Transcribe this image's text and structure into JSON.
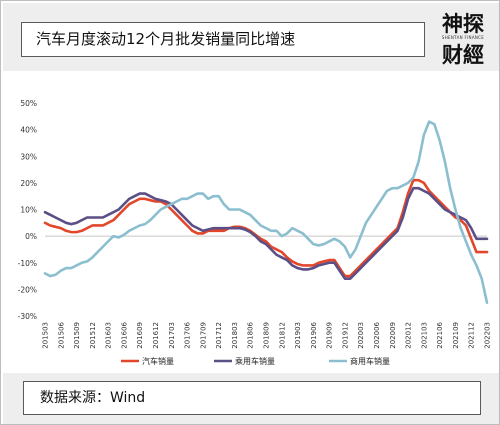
{
  "header": {
    "title": "汽车月度滚动12个月批发销量同比增速",
    "logo_top": "神探",
    "logo_bottom": "财經",
    "logo_sub": "SHENTAN FINANCE"
  },
  "footer": {
    "source": "数据来源：Wind"
  },
  "colors": {
    "auto": "#e2462b",
    "passenger": "#5b4f86",
    "commercial": "#8bbfd0"
  },
  "chart_data": {
    "type": "line",
    "title": "",
    "xlabel": "",
    "ylabel": "",
    "ylim": [
      -30,
      50
    ],
    "yticks": [
      50,
      40,
      30,
      20,
      10,
      0,
      -10,
      -20,
      -30
    ],
    "ytick_labels": [
      "50%",
      "40%",
      "30%",
      "20%",
      "10%",
      "0%",
      "-10%",
      "-20%",
      "-30%"
    ],
    "grid": false,
    "legend": "bottom",
    "x": [
      "201503",
      "201504",
      "201505",
      "201506",
      "201507",
      "201508",
      "201509",
      "201510",
      "201511",
      "201512",
      "201601",
      "201602",
      "201603",
      "201604",
      "201605",
      "201606",
      "201607",
      "201608",
      "201609",
      "201610",
      "201611",
      "201612",
      "201701",
      "201702",
      "201703",
      "201704",
      "201705",
      "201706",
      "201707",
      "201708",
      "201709",
      "201710",
      "201711",
      "201712",
      "201801",
      "201802",
      "201803",
      "201804",
      "201805",
      "201806",
      "201807",
      "201808",
      "201809",
      "201810",
      "201811",
      "201812",
      "201901",
      "201902",
      "201903",
      "201904",
      "201905",
      "201906",
      "201907",
      "201908",
      "201909",
      "201910",
      "201911",
      "201912",
      "202001",
      "202002",
      "202003",
      "202004",
      "202005",
      "202006",
      "202007",
      "202008",
      "202009",
      "202010",
      "202011",
      "202012",
      "202101",
      "202102",
      "202103",
      "202104",
      "202105",
      "202106",
      "202107",
      "202108",
      "202109",
      "202110",
      "202111",
      "202112",
      "202201",
      "202202",
      "202203"
    ],
    "xtick_labels": [
      "201503",
      "201506",
      "201509",
      "201512",
      "201603",
      "201606",
      "201609",
      "201612",
      "201703",
      "201706",
      "201709",
      "201712",
      "201803",
      "201806",
      "201809",
      "201812",
      "201903",
      "201906",
      "201909",
      "201912",
      "202003",
      "202006",
      "202009",
      "202012",
      "202103",
      "202106",
      "202109",
      "202112",
      "202203"
    ],
    "series": [
      {
        "name": "汽车销量",
        "color": "#e2462b",
        "values": [
          5,
          4,
          3.5,
          3,
          2,
          1.5,
          1.5,
          2,
          3,
          4,
          4,
          4,
          5,
          6,
          8,
          10,
          12,
          13,
          14,
          14,
          13.5,
          13,
          13,
          12,
          10,
          8,
          6,
          4,
          2,
          1,
          1,
          2,
          2,
          2,
          2,
          3,
          3.5,
          3.5,
          3,
          2,
          0.5,
          -1,
          -2,
          -4,
          -5,
          -6,
          -8,
          -9.5,
          -10.5,
          -11,
          -11,
          -11,
          -10,
          -9.5,
          -9,
          -9,
          -12,
          -15,
          -15,
          -13,
          -11,
          -9,
          -7,
          -5,
          -3,
          -1,
          1,
          3,
          9,
          16,
          21,
          21,
          20,
          17,
          15,
          13,
          11,
          9,
          7,
          6,
          4,
          -1,
          -6,
          -6,
          -6
        ]
      },
      {
        "name": "乘用车销量",
        "color": "#5b4f86",
        "values": [
          9,
          8,
          7,
          6,
          5,
          4.5,
          5,
          6,
          7,
          7,
          7,
          7,
          8,
          9,
          10,
          12,
          14,
          15,
          16,
          16,
          15,
          14,
          13.5,
          13,
          12,
          10,
          8,
          6,
          4,
          3,
          2,
          2.5,
          3,
          3,
          3,
          3,
          3,
          3,
          2.5,
          1.5,
          0,
          -2,
          -3,
          -5,
          -7,
          -8,
          -9,
          -11,
          -12,
          -12.5,
          -12.5,
          -12,
          -11,
          -10.5,
          -10,
          -10,
          -13,
          -16,
          -16,
          -14,
          -12,
          -10,
          -8,
          -6,
          -4,
          -2,
          0,
          2,
          7,
          14,
          18,
          18,
          17,
          16,
          14,
          12,
          10,
          9,
          8,
          7,
          6,
          3,
          -1,
          -1,
          -1
        ]
      },
      {
        "name": "商用车销量",
        "color": "#8bbfd0",
        "values": [
          -14,
          -15,
          -14.5,
          -13,
          -12,
          -12,
          -11,
          -10,
          -9.5,
          -8,
          -6,
          -4,
          -2,
          0,
          -0.5,
          0.5,
          2,
          3,
          4,
          4.5,
          6,
          8,
          10,
          11,
          12,
          13,
          14,
          14,
          15,
          16,
          16,
          14,
          15,
          15,
          12,
          10,
          10,
          10,
          9,
          8,
          6,
          4,
          3,
          2,
          2,
          0,
          1,
          3,
          2,
          1,
          -1,
          -3,
          -3.5,
          -3,
          -2,
          -1,
          -2,
          -4,
          -8,
          -5,
          0,
          5,
          8,
          11,
          14,
          17,
          18,
          18,
          19,
          20,
          22,
          28,
          38,
          43,
          42,
          36,
          28,
          18,
          10,
          3,
          -2,
          -7,
          -11,
          -16,
          -25
        ]
      }
    ]
  }
}
